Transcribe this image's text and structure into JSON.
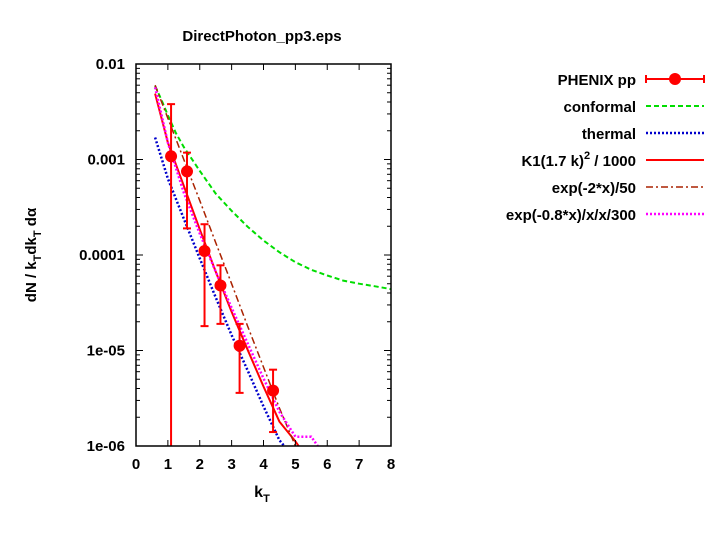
{
  "chart_data": {
    "type": "scatter",
    "title": "DirectPhoton_pp3.eps",
    "xlabel": "k",
    "xlabel_sub": "T",
    "ylabel_parts": [
      {
        "t": "dN / k",
        "sub": false
      },
      {
        "t": "T",
        "sub": true
      },
      {
        "t": "dk",
        "sub": false
      },
      {
        "t": "T",
        "sub": true
      },
      {
        "t": " dα",
        "sub": false
      }
    ],
    "xlim": [
      0,
      8
    ],
    "ylim": [
      1e-06,
      0.01
    ],
    "yscale": "log",
    "xticks": [
      0,
      1,
      2,
      3,
      4,
      5,
      6,
      7,
      8
    ],
    "xtick_labels": [
      "0",
      "1",
      "2",
      "3",
      "4",
      "5",
      "6",
      "7",
      "8"
    ],
    "yticks": [
      0.01,
      0.001,
      0.0001,
      1e-05,
      1e-06
    ],
    "ytick_labels": [
      "0.01",
      "0.001",
      "0.0001",
      "1e-05",
      "1e-06"
    ],
    "legend_position": "right",
    "series": [
      {
        "name": "PHENIX pp",
        "kind": "errorbar",
        "color": "#ff0000",
        "points": [
          {
            "x": 1.1,
            "y": 0.00108,
            "ylo": 1e-06,
            "yhi": 0.0038
          },
          {
            "x": 1.6,
            "y": 0.00075,
            "ylo": 0.00019,
            "yhi": 0.00118
          },
          {
            "x": 2.15,
            "y": 0.00011,
            "ylo": 1.8e-05,
            "yhi": 0.00021
          },
          {
            "x": 2.65,
            "y": 4.8e-05,
            "ylo": 1.9e-05,
            "yhi": 7.8e-05
          },
          {
            "x": 3.25,
            "y": 1.12e-05,
            "ylo": 3.6e-06,
            "yhi": 1.9e-05
          },
          {
            "x": 4.3,
            "y": 3.8e-06,
            "ylo": 1.4e-06,
            "yhi": 6.3e-06
          }
        ]
      },
      {
        "name": "conformal",
        "kind": "curve",
        "color": "#00dd00",
        "dash": "5,3",
        "width": 2,
        "points": [
          [
            0.6,
            0.0059
          ],
          [
            0.8,
            0.0042
          ],
          [
            1.0,
            0.0029
          ],
          [
            1.25,
            0.0019
          ],
          [
            1.5,
            0.00135
          ],
          [
            2.0,
            0.00076
          ],
          [
            2.5,
            0.00044
          ],
          [
            3.0,
            0.00029
          ],
          [
            3.5,
            0.000198
          ],
          [
            4.0,
            0.000142
          ],
          [
            4.5,
            0.000107
          ],
          [
            5.0,
            8.4e-05
          ],
          [
            5.5,
            7e-05
          ],
          [
            6.0,
            6.1e-05
          ],
          [
            6.5,
            5.4e-05
          ],
          [
            7.0,
            5e-05
          ],
          [
            7.5,
            4.7e-05
          ],
          [
            8.0,
            4.4e-05
          ]
        ]
      },
      {
        "name": "thermal",
        "kind": "curve",
        "color": "#0000cc",
        "dash": "2,2",
        "width": 2.5,
        "points": [
          [
            0.6,
            0.0017
          ],
          [
            1.0,
            0.00063
          ],
          [
            1.5,
            0.00024
          ],
          [
            2.0,
            9.2e-05
          ],
          [
            2.5,
            3.6e-05
          ],
          [
            3.0,
            1.45e-05
          ],
          [
            3.5,
            6.2e-06
          ],
          [
            4.0,
            2.6e-06
          ],
          [
            4.5,
            1.15e-06
          ],
          [
            4.65,
            1e-06
          ]
        ]
      },
      {
        "name": "K1(1.7 k)",
        "sup": "2",
        "after": " / 1000",
        "kind": "curve",
        "color": "#ff0000",
        "dash": "",
        "width": 2,
        "points": [
          [
            0.6,
            0.0049
          ],
          [
            1.0,
            0.0015
          ],
          [
            1.5,
            0.00053
          ],
          [
            2.0,
            0.000185
          ],
          [
            2.5,
            6.7e-05
          ],
          [
            3.0,
            2.55e-05
          ],
          [
            3.5,
            1.02e-05
          ],
          [
            4.0,
            4.2e-06
          ],
          [
            4.5,
            1.8e-06
          ],
          [
            5.0,
            1.12e-06
          ],
          [
            5.1,
            1e-06
          ]
        ]
      },
      {
        "name": "exp(-2*x)/50",
        "kind": "curve",
        "color": "#aa2200",
        "dash": "7,3,2,3",
        "width": 1.5,
        "points": [
          [
            0.6,
            0.006
          ],
          [
            1.0,
            0.0027
          ],
          [
            1.5,
            0.001
          ],
          [
            2.0,
            0.00037
          ],
          [
            2.5,
            0.000135
          ],
          [
            3.0,
            5e-05
          ],
          [
            3.5,
            1.8e-05
          ],
          [
            4.0,
            6.7e-06
          ],
          [
            4.5,
            2.5e-06
          ],
          [
            5.0,
            1e-06
          ]
        ]
      },
      {
        "name": "exp(-0.8*x)/x/x/300",
        "kind": "curve",
        "color": "#ff00ff",
        "dash": "2,2",
        "width": 2.5,
        "points": [
          [
            0.6,
            0.0057
          ],
          [
            1.0,
            0.0015
          ],
          [
            1.5,
            0.00045
          ],
          [
            2.0,
            0.000167
          ],
          [
            2.5,
            6.7e-05
          ],
          [
            3.0,
            2.8e-05
          ],
          [
            3.5,
            1.19e-05
          ],
          [
            4.0,
            5.1e-06
          ],
          [
            4.5,
            2.28e-06
          ],
          [
            5.0,
            1.25e-06
          ],
          [
            5.5,
            1.25e-06
          ],
          [
            5.7,
            1e-06
          ]
        ]
      }
    ]
  }
}
